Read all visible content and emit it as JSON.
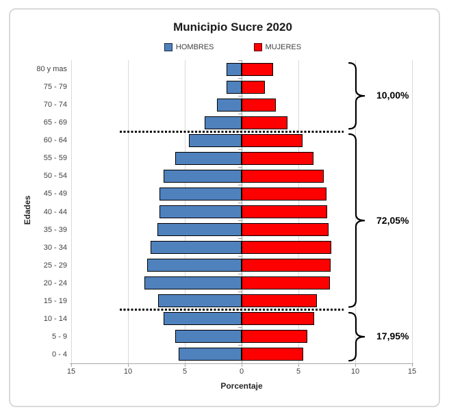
{
  "title": "Municipio Sucre 2020",
  "axes": {
    "y_title": "Edades",
    "x_title": "Porcentaje",
    "x_tick_labels": [
      "15",
      "10",
      "5",
      "0",
      "5",
      "10",
      "15"
    ]
  },
  "colors": {
    "hombres": "#4F81BD",
    "mujeres": "#FF0000",
    "bar_border": "#000000",
    "grid": "#D9D9D9",
    "center_axis": "#9E9E9E",
    "axis_line": "#A6A6A6",
    "text": "#3F3F3F",
    "frame": "#D9D9D9",
    "separator": "#000000"
  },
  "chart_data": {
    "type": "bar",
    "subtype": "population-pyramid",
    "title": "Municipio Sucre 2020",
    "xlabel": "Porcentaje",
    "ylabel": "Edades",
    "xlim": [
      -15,
      15
    ],
    "x_ticks": [
      -15,
      -10,
      -5,
      0,
      5,
      10,
      15
    ],
    "grid": true,
    "legend_position": "top",
    "categories": [
      "80 y mas",
      "75 - 79",
      "70 - 74",
      "65 - 69",
      "60 - 64",
      "55 - 59",
      "50 - 54",
      "45 - 49",
      "40 - 44",
      "35 - 39",
      "30 - 34",
      "25 - 29",
      "20 - 24",
      "15 - 19",
      "10 - 14",
      "5 - 9",
      "0 - 4"
    ],
    "series": [
      {
        "name": "HOMBRES",
        "side": "left",
        "color": "#4F81BD",
        "values": [
          1.3,
          1.35,
          2.15,
          3.25,
          4.65,
          5.85,
          6.85,
          7.25,
          7.25,
          7.4,
          8.0,
          8.3,
          8.55,
          7.35,
          6.85,
          5.85,
          5.55
        ]
      },
      {
        "name": "MUJERES",
        "side": "right",
        "color": "#FF0000",
        "values": [
          2.8,
          2.05,
          3.0,
          4.05,
          5.35,
          6.35,
          7.25,
          7.45,
          7.5,
          7.65,
          7.9,
          7.85,
          7.8,
          6.65,
          6.4,
          5.8,
          5.4
        ]
      }
    ],
    "separators_after_rows": [
      3,
      13
    ],
    "groups": [
      {
        "label": "10,00%",
        "start_row": 0,
        "end_row": 3
      },
      {
        "label": "72,05%",
        "start_row": 4,
        "end_row": 13
      },
      {
        "label": "17,95%",
        "start_row": 14,
        "end_row": 16
      }
    ]
  }
}
